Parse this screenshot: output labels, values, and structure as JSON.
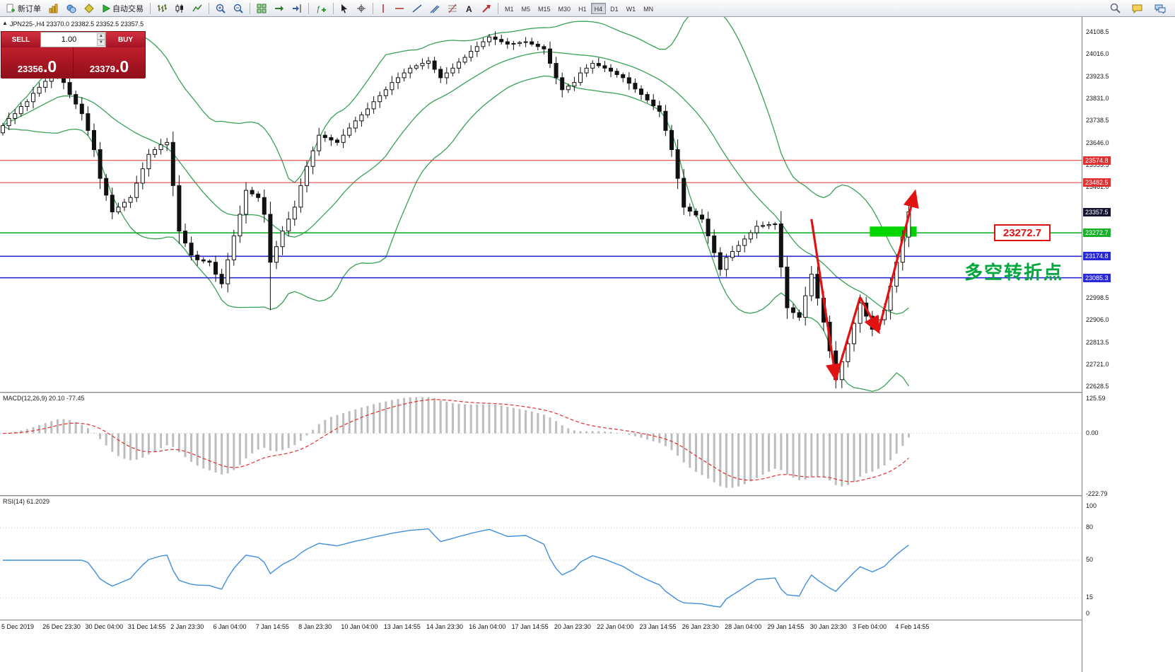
{
  "toolbar": {
    "new_order_label": "新订单",
    "autotrade_label": "自动交易",
    "timeframes": [
      "M1",
      "M5",
      "M15",
      "M30",
      "H1",
      "H4",
      "D1",
      "W1",
      "MN"
    ],
    "active_timeframe": "H4"
  },
  "chart": {
    "symbol_label": "JPN225-,H4  23370.0 23382.5 23352.5 23357.5",
    "one_click": {
      "sell_label": "SELL",
      "buy_label": "BUY",
      "volume": "1.00",
      "sell_price_main": "23356",
      "sell_price_frac": ".0",
      "buy_price_main": "23379",
      "buy_price_frac": ".0"
    },
    "price_axis": {
      "max": 24108.5,
      "min": 22628.5,
      "ticks": [
        24108.5,
        24016.0,
        23923.5,
        23831.0,
        23738.5,
        23646.0,
        23553.5,
        23461.0,
        22998.5,
        22906.0,
        22813.5,
        22721.0,
        22628.5
      ],
      "tags": [
        {
          "v": 23574.8,
          "bg": "#e03131"
        },
        {
          "v": 23482.5,
          "bg": "#e03131"
        },
        {
          "v": 23357.5,
          "bg": "#141432"
        },
        {
          "v": 23272.7,
          "bg": "#16b02a"
        },
        {
          "v": 23174.8,
          "bg": "#2828d8"
        },
        {
          "v": 23085.3,
          "bg": "#2828d8"
        }
      ]
    },
    "hlines": [
      {
        "v": 23574.8,
        "color": "#e03131",
        "w": 1
      },
      {
        "v": 23482.5,
        "color": "#e03131",
        "w": 1
      },
      {
        "v": 23272.7,
        "color": "#16b02a",
        "w": 1.6
      },
      {
        "v": 23174.8,
        "color": "#2828d8",
        "w": 1.6
      },
      {
        "v": 23085.3,
        "color": "#2828d8",
        "w": 1.6
      }
    ],
    "annotations": {
      "price_callout": "23272.7",
      "turning_point_text": "多空转折点"
    }
  },
  "macd": {
    "label": "MACD(12,26,9) 20.10 -77.45",
    "axis_values": [
      125.59,
      0.0,
      -222.79
    ],
    "params": {
      "fast": 12,
      "slow": 26,
      "signal": 9
    }
  },
  "rsi": {
    "label": "RSI(14) 61.2029",
    "axis_values": [
      100,
      80,
      50,
      15,
      0
    ],
    "params": {
      "period": 14
    }
  },
  "date_axis": [
    "5 Dec 2019",
    "26 Dec 23:30",
    "30 Dec 04:00",
    "31 Dec 14:55",
    "2 Jan 23:30",
    "6 Jan 04:00",
    "7 Jan 14:55",
    "8 Jan 23:30",
    "10 Jan 04:00",
    "13 Jan 14:55",
    "14 Jan 23:30",
    "16 Jan 04:00",
    "17 Jan 14:55",
    "20 Jan 23:30",
    "22 Jan 04:00",
    "23 Jan 14:55",
    "26 Jan 23:30",
    "28 Jan 04:00",
    "29 Jan 14:55",
    "30 Jan 23:30",
    "3 Feb 04:00",
    "4 Feb 14:55"
  ],
  "colors": {
    "bull": "#ffffff",
    "bear": "#111111",
    "bollinger": "#38a157",
    "macd_hist": "#bdbdbd",
    "macd_signal": "#e03030",
    "rsi_line": "#3f8fdd",
    "arrow": "#e01212",
    "highlight": "#00d500"
  },
  "chart_data": {
    "type": "candlestick",
    "symbol": "JPN225-",
    "timeframe": "H4",
    "ohlc_open_high_low_close_latest": [
      23370.0,
      23382.5,
      23352.5,
      23357.5
    ],
    "price_range": [
      22628.5,
      24108.5
    ],
    "closes": [
      23720,
      23750,
      23770,
      23800,
      23820,
      23855,
      23880,
      23905,
      23930,
      23950,
      23900,
      23850,
      23810,
      23770,
      23700,
      23620,
      23500,
      23430,
      23360,
      23380,
      23400,
      23420,
      23480,
      23540,
      23600,
      23620,
      23640,
      23650,
      23470,
      23280,
      23230,
      23180,
      23160,
      23155,
      23150,
      23100,
      23060,
      23160,
      23260,
      23350,
      23450,
      23435,
      23420,
      23350,
      23150,
      23215,
      23280,
      23330,
      23380,
      23470,
      23550,
      23615,
      23680,
      23670,
      23660,
      23650,
      23680,
      23710,
      23740,
      23765,
      23790,
      23820,
      23845,
      23870,
      23900,
      23920,
      23940,
      23960,
      23970,
      23980,
      23990,
      23955,
      23920,
      23940,
      23960,
      23985,
      24005,
      24030,
      24050,
      24070,
      24090,
      24080,
      24070,
      24060,
      24063,
      24067,
      24070,
      24060,
      24050,
      24040,
      23980,
      23920,
      23870,
      23885,
      23900,
      23940,
      23960,
      23980,
      23970,
      23960,
      23947,
      23933,
      23920,
      23897,
      23873,
      23850,
      23827,
      23803,
      23780,
      23700,
      23620,
      23500,
      23380,
      23363,
      23347,
      23330,
      23260,
      23190,
      23120,
      23170,
      23195,
      23220,
      23247,
      23273,
      23300,
      23303,
      23307,
      23310,
      23130,
      22960,
      22940,
      22920,
      23010,
      23100,
      23000,
      22900,
      22780,
      22660,
      22735,
      22810,
      22895,
      22980,
      22925,
      22870,
      22910,
      22950,
      23050,
      23150,
      23255,
      23360
    ],
    "wick_low_overrides": {
      "44": 22950
    },
    "bollinger_params": {
      "period": 20,
      "deviation": 2
    },
    "trend_arrow_points": [
      [
        133,
        23330
      ],
      [
        137,
        22664
      ],
      [
        141,
        23004
      ],
      [
        144,
        22862
      ],
      [
        150,
        23441
      ]
    ],
    "highlight_rect": {
      "i1": 142.6,
      "i2": 150.3,
      "p1": 23299,
      "p2": 23257
    }
  }
}
